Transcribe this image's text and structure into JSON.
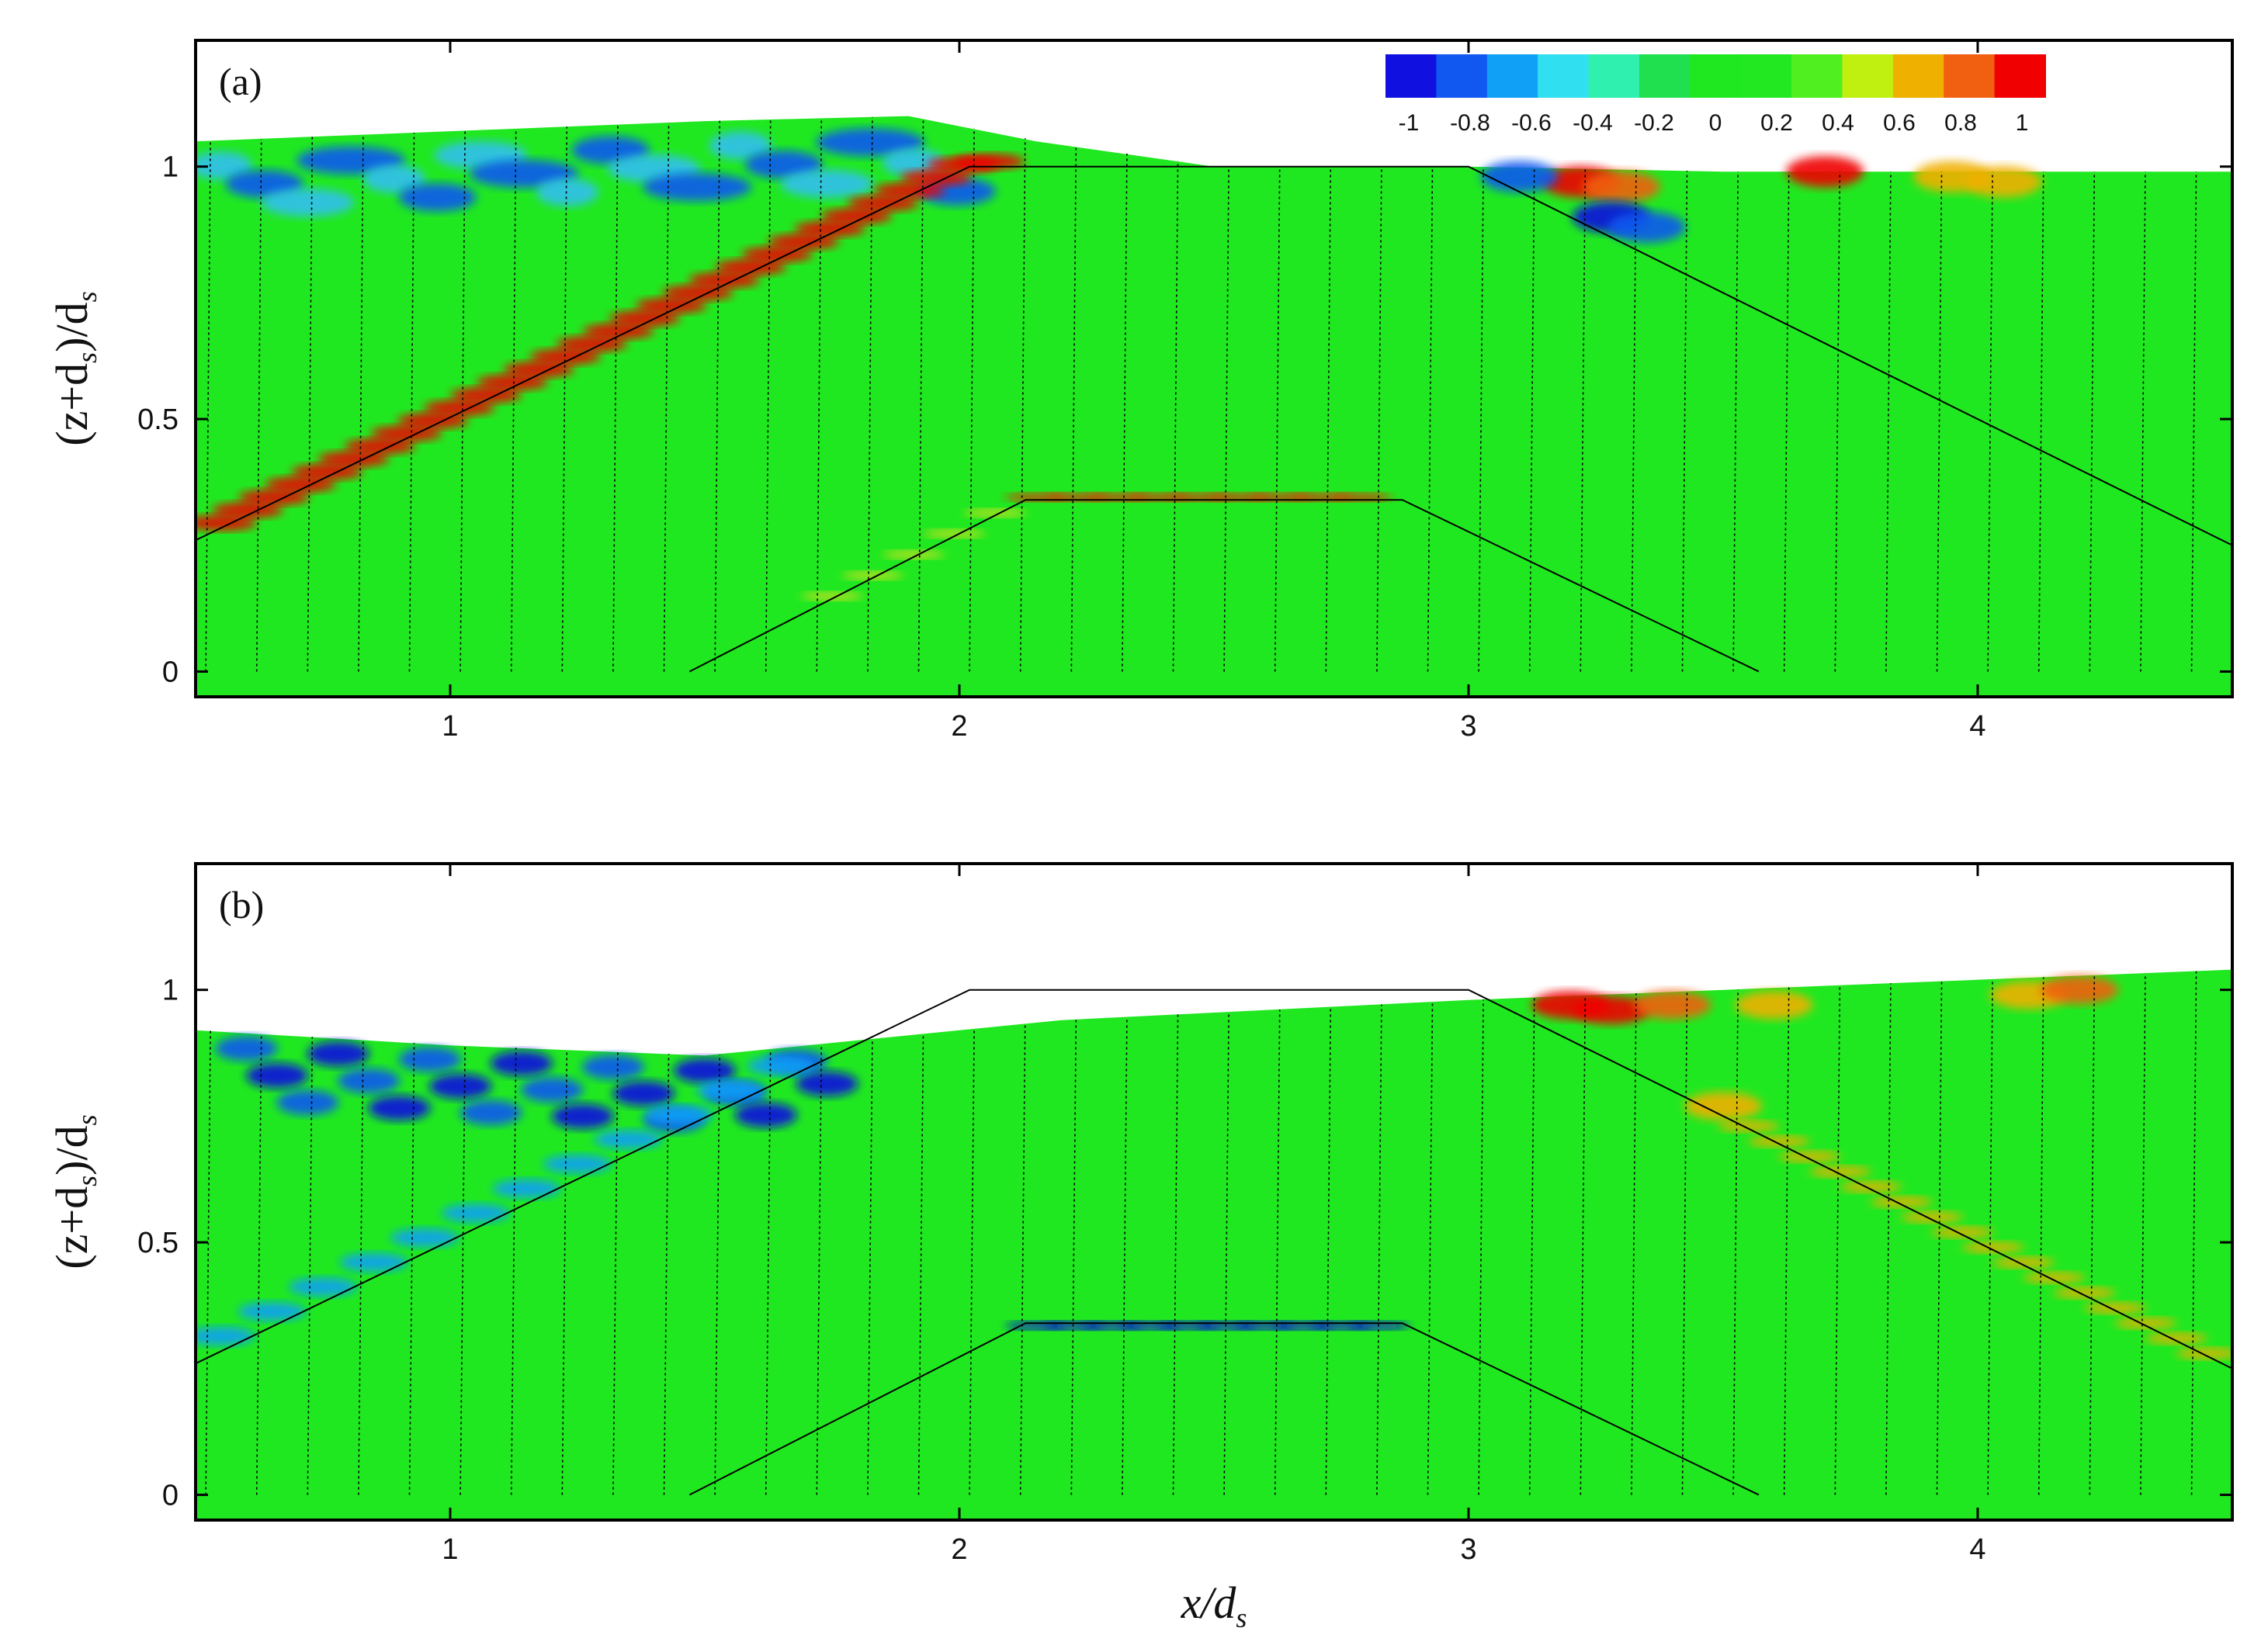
{
  "chart_data": {
    "type": "contour",
    "description_colormap": [
      "#1010e0",
      "#1058f0",
      "#10a0f5",
      "#30e0f0",
      "#30f0b0",
      "#20e050",
      "#20e820",
      "#22e822",
      "#50f020",
      "#c0f010",
      "#f0b000",
      "#f06010",
      "#f00000"
    ],
    "colorbar": {
      "ticks": [
        "-1",
        "-0.8",
        "-0.6",
        "-0.4",
        "-0.2",
        "0",
        "0.2",
        "0.4",
        "0.6",
        "0.8",
        "1"
      ],
      "range": [
        -1,
        1
      ]
    },
    "xlabel": {
      "main": "x/d",
      "sub": "s"
    },
    "ylabel": {
      "pre": "(z+d",
      "sub": "s",
      "post": ")/d",
      "sub2": "s"
    },
    "xlim": [
      0.5,
      4.5
    ],
    "ylim": [
      -0.05,
      1.25
    ],
    "xticks": [
      1,
      2,
      3,
      4
    ],
    "yticks": [
      0,
      0.5,
      1
    ],
    "ytick_labels": [
      "0",
      "0.5",
      "1"
    ],
    "xtick_labels": [
      "1",
      "2",
      "3",
      "4"
    ],
    "structure": {
      "outer_trapezoid": [
        [
          0.5,
          0.26
        ],
        [
          2.02,
          1.0
        ],
        [
          3.0,
          1.0
        ],
        [
          4.5,
          0.25
        ]
      ],
      "inner_trapezoid": [
        [
          1.47,
          0.0
        ],
        [
          2.13,
          0.34
        ],
        [
          2.87,
          0.34
        ],
        [
          3.57,
          0.0
        ]
      ]
    },
    "panels": [
      {
        "label": "(a)",
        "free_surface": [
          [
            0.5,
            1.05
          ],
          [
            1.0,
            1.07
          ],
          [
            1.5,
            1.09
          ],
          [
            1.9,
            1.1
          ],
          [
            2.15,
            1.05
          ],
          [
            2.5,
            1.0
          ],
          [
            3.0,
            1.0
          ],
          [
            3.5,
            0.99
          ],
          [
            4.0,
            0.99
          ],
          [
            4.5,
            0.99
          ]
        ]
      },
      {
        "label": "(b)",
        "free_surface": [
          [
            0.5,
            0.92
          ],
          [
            1.0,
            0.89
          ],
          [
            1.5,
            0.87
          ],
          [
            1.8,
            0.9
          ],
          [
            2.2,
            0.94
          ],
          [
            2.6,
            0.96
          ],
          [
            3.0,
            0.98
          ],
          [
            3.5,
            1.0
          ],
          [
            4.0,
            1.02
          ],
          [
            4.5,
            1.04
          ]
        ]
      }
    ]
  }
}
